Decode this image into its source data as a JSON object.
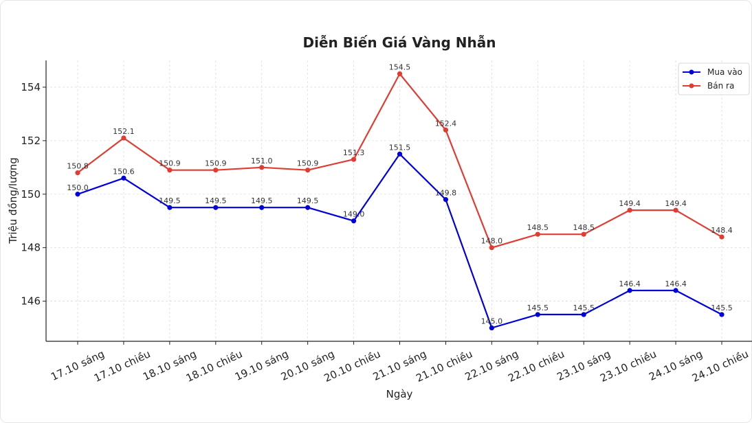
{
  "chart_data": {
    "type": "line",
    "title": "Diễn Biến Giá Vàng Nhẫn",
    "xlabel": "Ngày",
    "ylabel": "Triệu đồng/lượng",
    "categories": [
      "17.10 sáng",
      "17.10 chiều",
      "18.10 sáng",
      "18.10 chiều",
      "19.10 sáng",
      "20.10 sáng",
      "20.10 chiều",
      "21.10 sáng",
      "21.10 chiều",
      "22.10 sáng",
      "22.10 chiều",
      "23.10 sáng",
      "23.10 chiều",
      "24.10 sáng",
      "24.10 chiều"
    ],
    "ylim": [
      144.5,
      155.0
    ],
    "yticks": [
      146,
      148,
      150,
      152,
      154
    ],
    "grid": true,
    "legend_position": "top-right",
    "series": [
      {
        "name": "Mua vào",
        "color": "#0000dd",
        "values": [
          150.0,
          150.6,
          149.5,
          149.5,
          149.5,
          149.5,
          149.0,
          151.5,
          149.8,
          145.0,
          145.5,
          145.5,
          146.4,
          146.4,
          145.5
        ],
        "labels": [
          "150.0",
          "150.6",
          "149.5",
          "149.5",
          "149.5",
          "149.5",
          "149.0",
          "151.5",
          "149.8",
          "145.0",
          "145.5",
          "145.5",
          "146.4",
          "146.4",
          "145.5"
        ]
      },
      {
        "name": "Bán ra",
        "color": "#e03c31",
        "values": [
          150.8,
          152.1,
          150.9,
          150.9,
          151.0,
          150.9,
          151.3,
          154.5,
          152.4,
          148.0,
          148.5,
          148.5,
          149.4,
          149.4,
          148.4
        ],
        "labels": [
          "150.8",
          "152.1",
          "150.9",
          "150.9",
          "151.0",
          "150.9",
          "151.3",
          "154.5",
          "152.4",
          "148.0",
          "148.5",
          "148.5",
          "149.4",
          "149.4",
          "148.4"
        ]
      }
    ]
  }
}
